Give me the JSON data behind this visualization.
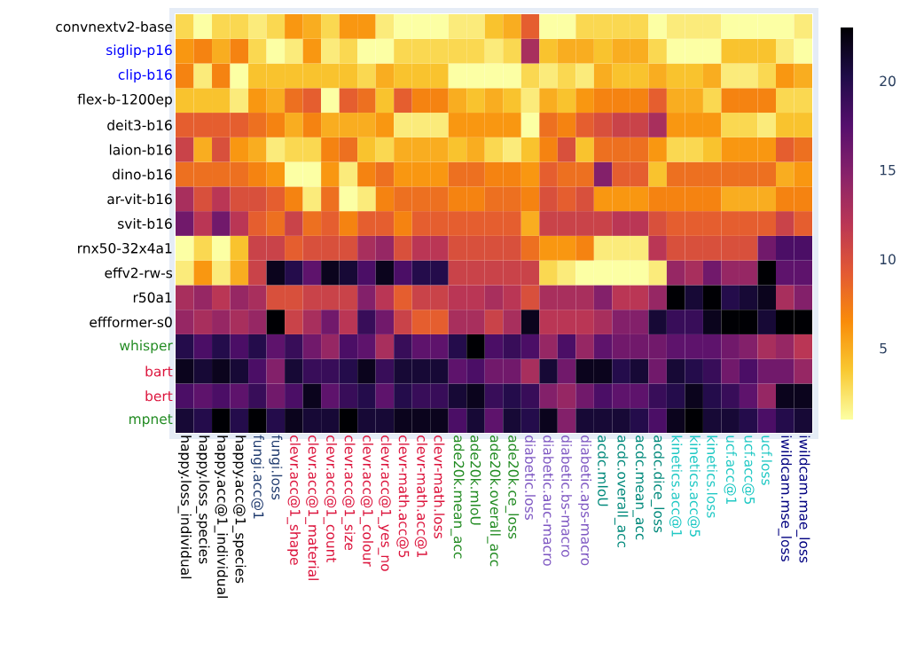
{
  "chart_data": {
    "type": "heatmap",
    "categories": [
      "happy.loss_individual",
      "happy.loss_species",
      "happy.acc@1_individual",
      "happy.acc@1_species",
      "fungi.acc@1",
      "fungi.loss",
      "clevr.acc@1_shape",
      "clevr.acc@1_material",
      "clevr.acc@1_count",
      "clevr.acc@1_size",
      "clevr.acc@1_colour",
      "clevr.acc@1_yes_no",
      "clevr-math.acc@5",
      "clevr-math.acc@1",
      "clevr-math.loss",
      "ade20k.mean_acc",
      "ade20k.mIoU",
      "ade20k.overall_acc",
      "ade20k.ce_loss",
      "diabetic.loss",
      "diabetic.auc-macro",
      "diabetic.bs-macro",
      "diabetic.aps-macro",
      "acdc.mIoU",
      "acdc.overall_acc",
      "acdc.mean_acc",
      "acdc.dice_loss",
      "kinetics.acc@1",
      "kinetics.acc@5",
      "kinetics.loss",
      "ucf.acc@1",
      "ucf.acc@5",
      "ucf.loss",
      "iwildcam.mse_loss",
      "iwildcam.mae_loss"
    ],
    "y_categories": [
      "convnextv2-base",
      "siglip-p16",
      "clip-b16",
      "flex-b-1200ep",
      "deit3-b16",
      "laion-b16",
      "dino-b16",
      "ar-vit-b16",
      "svit-b16",
      "rnx50-32x4a1",
      "effv2-rw-s",
      "r50a1",
      "effformer-s0",
      "whisper",
      "bart",
      "bert",
      "mpnet"
    ],
    "cells": [
      [
        3,
        1,
        3,
        3,
        2,
        3,
        6,
        5,
        3,
        6,
        6,
        2,
        1,
        1,
        1,
        2,
        2,
        4,
        5,
        9,
        1,
        1,
        3,
        3,
        3,
        3,
        1,
        2,
        2,
        2,
        1,
        1,
        1,
        1,
        2
      ],
      [
        6,
        7,
        5,
        7,
        3,
        1,
        2,
        6,
        2,
        3,
        1,
        1,
        3,
        3,
        3,
        3,
        3,
        2,
        3,
        13,
        4,
        5,
        5,
        4,
        5,
        5,
        3,
        1,
        1,
        1,
        4,
        4,
        4,
        2,
        1
      ],
      [
        7,
        2,
        7,
        1,
        4,
        4,
        4,
        4,
        4,
        4,
        3,
        5,
        4,
        4,
        4,
        1,
        1,
        1,
        1,
        3,
        2,
        3,
        2,
        5,
        4,
        4,
        5,
        4,
        4,
        5,
        2,
        2,
        3,
        6,
        5
      ],
      [
        4,
        4,
        4,
        2,
        6,
        5,
        8,
        9,
        1,
        9,
        8,
        4,
        9,
        7,
        7,
        5,
        4,
        5,
        4,
        2,
        5,
        4,
        6,
        7,
        7,
        7,
        9,
        5,
        5,
        3,
        7,
        7,
        7,
        3,
        3
      ],
      [
        9,
        9,
        9,
        9,
        8,
        7,
        5,
        7,
        5,
        5,
        5,
        6,
        2,
        2,
        2,
        6,
        6,
        6,
        6,
        1,
        8,
        7,
        9,
        10,
        11,
        11,
        13,
        6,
        6,
        6,
        3,
        3,
        2,
        4,
        4
      ],
      [
        11,
        5,
        10,
        6,
        5,
        2,
        3,
        3,
        7,
        8,
        4,
        3,
        5,
        5,
        5,
        4,
        5,
        3,
        2,
        4,
        7,
        10,
        4,
        8,
        8,
        8,
        6,
        3,
        3,
        4,
        6,
        6,
        6,
        9,
        8
      ],
      [
        8,
        8,
        8,
        8,
        7,
        6,
        1,
        1,
        6,
        2,
        7,
        8,
        6,
        6,
        6,
        8,
        8,
        7,
        7,
        6,
        9,
        8,
        8,
        15,
        9,
        9,
        4,
        8,
        8,
        8,
        8,
        8,
        8,
        5,
        6
      ],
      [
        13,
        10,
        12,
        10,
        10,
        9,
        7,
        2,
        8,
        1,
        2,
        7,
        8,
        8,
        8,
        7,
        7,
        8,
        8,
        7,
        10,
        9,
        10,
        6,
        6,
        6,
        7,
        7,
        7,
        7,
        5,
        5,
        5,
        7,
        7
      ],
      [
        16,
        12,
        16,
        12,
        9,
        8,
        11,
        8,
        9,
        7,
        9,
        9,
        7,
        9,
        9,
        9,
        9,
        9,
        9,
        5,
        11,
        11,
        11,
        11,
        12,
        12,
        10,
        9,
        9,
        9,
        9,
        9,
        9,
        11,
        9
      ],
      [
        1,
        3,
        1,
        4,
        11,
        11,
        9,
        10,
        10,
        10,
        13,
        14,
        10,
        12,
        12,
        10,
        10,
        10,
        10,
        8,
        6,
        6,
        7,
        2,
        2,
        2,
        12,
        10,
        10,
        10,
        10,
        10,
        16,
        18,
        18
      ],
      [
        2,
        6,
        2,
        5,
        11,
        22,
        20,
        17,
        22,
        21,
        18,
        22,
        18,
        20,
        20,
        11,
        11,
        11,
        11,
        11,
        3,
        2,
        1,
        1,
        1,
        1,
        2,
        14,
        13,
        16,
        14,
        14,
        23,
        17,
        17
      ],
      [
        13,
        14,
        12,
        14,
        13,
        10,
        10,
        11,
        11,
        11,
        15,
        12,
        9,
        11,
        11,
        12,
        12,
        13,
        12,
        10,
        13,
        13,
        13,
        15,
        12,
        12,
        14,
        23,
        21,
        23,
        20,
        21,
        22,
        13,
        15
      ],
      [
        14,
        13,
        14,
        13,
        14,
        23,
        11,
        13,
        16,
        12,
        19,
        16,
        11,
        9,
        9,
        13,
        13,
        11,
        13,
        22,
        12,
        12,
        12,
        13,
        15,
        15,
        21,
        19,
        19,
        22,
        23,
        23,
        21,
        23,
        23
      ],
      [
        20,
        18,
        20,
        18,
        20,
        17,
        19,
        16,
        14,
        18,
        17,
        13,
        19,
        17,
        17,
        20,
        23,
        18,
        19,
        18,
        14,
        18,
        14,
        17,
        16,
        16,
        16,
        17,
        17,
        17,
        16,
        15,
        13,
        14,
        12
      ],
      [
        22,
        21,
        22,
        21,
        18,
        15,
        21,
        19,
        19,
        20,
        22,
        19,
        21,
        21,
        21,
        17,
        18,
        16,
        16,
        13,
        21,
        16,
        22,
        22,
        20,
        21,
        16,
        21,
        20,
        19,
        16,
        18,
        16,
        16,
        14
      ],
      [
        18,
        17,
        18,
        17,
        19,
        16,
        18,
        22,
        17,
        19,
        20,
        17,
        20,
        19,
        19,
        21,
        22,
        19,
        20,
        19,
        15,
        14,
        16,
        18,
        17,
        17,
        19,
        20,
        22,
        20,
        19,
        17,
        14,
        22,
        22
      ],
      [
        21,
        20,
        23,
        20,
        23,
        20,
        22,
        21,
        21,
        23,
        21,
        21,
        22,
        22,
        22,
        18,
        21,
        17,
        21,
        20,
        22,
        15,
        21,
        21,
        21,
        20,
        18,
        22,
        23,
        21,
        21,
        20,
        18,
        20,
        21
      ]
    ],
    "clim": [
      1,
      23
    ],
    "cticks": [
      5,
      10,
      15,
      20
    ]
  }
}
